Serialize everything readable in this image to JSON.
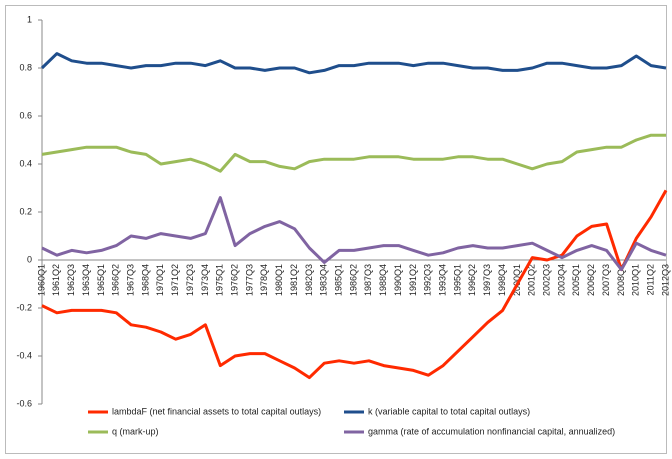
{
  "chart_data": {
    "type": "line",
    "categories": [
      "1960Q1",
      "1961Q2",
      "1962Q3",
      "1963Q4",
      "1965Q1",
      "1966Q2",
      "1967Q3",
      "1968Q4",
      "1970Q1",
      "1971Q2",
      "1972Q3",
      "1973Q4",
      "1975Q1",
      "1976Q2",
      "1977Q3",
      "1978Q4",
      "1980Q1",
      "1981Q2",
      "1982Q3",
      "1983Q4",
      "1985Q1",
      "1986Q2",
      "1987Q3",
      "1988Q4",
      "1990Q1",
      "1991Q2",
      "1992Q3",
      "1993Q4",
      "1995Q1",
      "1996Q2",
      "1997Q3",
      "1998Q4",
      "2000Q1",
      "2001Q2",
      "2002Q3",
      "2003Q4",
      "2005Q1",
      "2006Q2",
      "2007Q3",
      "2008Q4",
      "2010Q1",
      "2011Q2",
      "2012Q3"
    ],
    "series": [
      {
        "name": "lambdaF (net financial assets to total capital outlays)",
        "color": "#ff2a00",
        "values": [
          -0.19,
          -0.22,
          -0.21,
          -0.21,
          -0.21,
          -0.22,
          -0.27,
          -0.28,
          -0.3,
          -0.33,
          -0.31,
          -0.27,
          -0.44,
          -0.4,
          -0.39,
          -0.39,
          -0.42,
          -0.45,
          -0.49,
          -0.43,
          -0.42,
          -0.43,
          -0.42,
          -0.44,
          -0.45,
          -0.46,
          -0.48,
          -0.44,
          -0.38,
          -0.32,
          -0.26,
          -0.21,
          -0.1,
          0.01,
          0.0,
          0.02,
          0.1,
          0.14,
          0.15,
          -0.04,
          0.09,
          0.18,
          0.29
        ]
      },
      {
        "name": "k (variable capital to total capital outlays)",
        "color": "#1f4e8c",
        "values": [
          0.8,
          0.86,
          0.83,
          0.82,
          0.82,
          0.81,
          0.8,
          0.81,
          0.81,
          0.82,
          0.82,
          0.81,
          0.83,
          0.8,
          0.8,
          0.79,
          0.8,
          0.8,
          0.78,
          0.79,
          0.81,
          0.81,
          0.82,
          0.82,
          0.82,
          0.81,
          0.82,
          0.82,
          0.81,
          0.8,
          0.8,
          0.79,
          0.79,
          0.8,
          0.82,
          0.82,
          0.81,
          0.8,
          0.8,
          0.81,
          0.85,
          0.81,
          0.8
        ]
      },
      {
        "name": "q (mark-up)",
        "color": "#9bbb59",
        "values": [
          0.44,
          0.45,
          0.46,
          0.47,
          0.47,
          0.47,
          0.45,
          0.44,
          0.4,
          0.41,
          0.42,
          0.4,
          0.37,
          0.44,
          0.41,
          0.41,
          0.39,
          0.38,
          0.41,
          0.42,
          0.42,
          0.42,
          0.43,
          0.43,
          0.43,
          0.42,
          0.42,
          0.42,
          0.43,
          0.43,
          0.42,
          0.42,
          0.4,
          0.38,
          0.4,
          0.41,
          0.45,
          0.46,
          0.47,
          0.47,
          0.5,
          0.52,
          0.52
        ]
      },
      {
        "name": "gamma (rate of accumulation nonfinancial capital, annualized)",
        "color": "#8064a2",
        "values": [
          0.05,
          0.02,
          0.04,
          0.03,
          0.04,
          0.06,
          0.1,
          0.09,
          0.11,
          0.1,
          0.09,
          0.11,
          0.26,
          0.06,
          0.11,
          0.14,
          0.16,
          0.13,
          0.05,
          -0.01,
          0.04,
          0.04,
          0.05,
          0.06,
          0.06,
          0.04,
          0.02,
          0.03,
          0.05,
          0.06,
          0.05,
          0.05,
          0.06,
          0.07,
          0.04,
          0.01,
          0.04,
          0.06,
          0.04,
          -0.04,
          0.07,
          0.04,
          0.02
        ]
      }
    ],
    "ylim": [
      -0.6,
      1
    ],
    "yticks": [
      -0.6,
      -0.4,
      -0.2,
      0,
      0.2,
      0.4,
      0.6,
      0.8,
      1
    ],
    "grid": false,
    "legend": "bottom"
  }
}
